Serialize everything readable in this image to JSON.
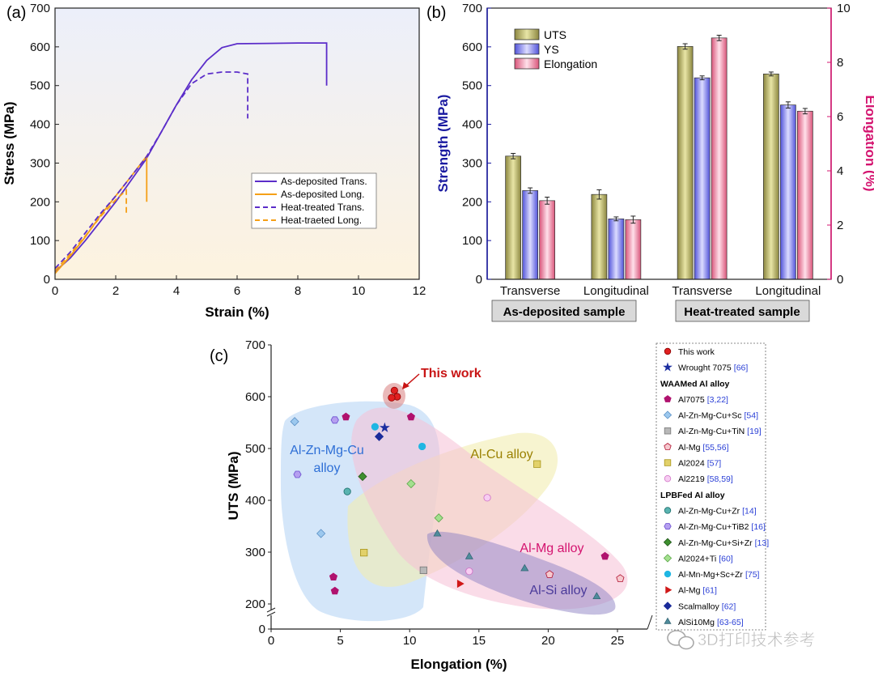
{
  "panels": {
    "a": "(a)",
    "b": "(b)",
    "c": "(c)"
  },
  "colors": {
    "purple": "#5b2dc9",
    "orange": "#f5a017",
    "navy": "#1a1aa0",
    "magenta": "#d4136f",
    "red": "#c81414"
  },
  "chart_data": [
    {
      "id": "a",
      "type": "line",
      "title": "",
      "xlabel": "Strain (%)",
      "ylabel": "Stress (MPa)",
      "xlim": [
        0,
        12
      ],
      "ylim": [
        0,
        700
      ],
      "xticks": [
        "0",
        "2",
        "4",
        "6",
        "8",
        "10",
        "12"
      ],
      "yticks": [
        "0",
        "100",
        "200",
        "300",
        "400",
        "500",
        "600",
        "700"
      ],
      "legend_position": "lower-right",
      "series": [
        {
          "name": "As-deposited Trans.",
          "color": "#5b2dc9",
          "dash": false,
          "x": [
            0,
            0.5,
            1,
            1.5,
            2,
            2.5,
            3,
            3.5,
            4,
            4.5,
            5,
            5.5,
            6,
            7,
            8,
            8.95,
            8.95
          ],
          "y": [
            20,
            55,
            100,
            150,
            200,
            255,
            310,
            380,
            450,
            515,
            565,
            598,
            608,
            609,
            610,
            610,
            500
          ]
        },
        {
          "name": "As-deposited Long.",
          "color": "#f5a017",
          "dash": false,
          "x": [
            0,
            0.5,
            1,
            1.5,
            2,
            2.5,
            3.02,
            3.02
          ],
          "y": [
            15,
            60,
            110,
            165,
            215,
            265,
            318,
            200
          ]
        },
        {
          "name": "Heat-treated Trans.",
          "color": "#5b2dc9",
          "dash": true,
          "x": [
            0,
            0.5,
            1,
            1.5,
            2,
            2.5,
            3,
            3.5,
            4,
            4.5,
            5,
            5.5,
            6,
            6.35,
            6.35
          ],
          "y": [
            28,
            70,
            120,
            170,
            215,
            265,
            315,
            380,
            450,
            505,
            530,
            535,
            535,
            530,
            415
          ]
        },
        {
          "name": "Heat-traeted Long.",
          "color": "#f5a017",
          "dash": true,
          "x": [
            0,
            0.5,
            1,
            1.5,
            2,
            2.35,
            2.35
          ],
          "y": [
            22,
            65,
            112,
            162,
            205,
            230,
            165
          ]
        }
      ]
    },
    {
      "id": "b",
      "type": "bar",
      "title": "",
      "ylabel": "Strength (MPa)",
      "y2label": "Elongation (%)",
      "ylim": [
        0,
        700
      ],
      "y2lim": [
        0,
        10
      ],
      "yticks": [
        "0",
        "100",
        "200",
        "300",
        "400",
        "500",
        "600",
        "700"
      ],
      "y2ticks": [
        "0",
        "2",
        "4",
        "6",
        "8",
        "10"
      ],
      "categories": [
        "Transverse",
        "Longitudinal",
        "Transverse",
        "Longitudinal"
      ],
      "groups": [
        "As-deposited sample",
        "Heat-treated sample"
      ],
      "legend_position": "top-left",
      "series": [
        {
          "name": "UTS",
          "axis": "left",
          "color": "#c8c470",
          "values": [
            318,
            219,
            601,
            530
          ],
          "errors": [
            7,
            12,
            7,
            5
          ]
        },
        {
          "name": "YS",
          "axis": "left",
          "color": "#8f90f2",
          "values": [
            229,
            156,
            520,
            450
          ],
          "errors": [
            7,
            5,
            5,
            8
          ]
        },
        {
          "name": "Elongation",
          "axis": "right",
          "color": "#f49ab4",
          "values": [
            2.9,
            2.2,
            8.9,
            6.2
          ],
          "errors": [
            0.13,
            0.13,
            0.1,
            0.1
          ]
        }
      ]
    },
    {
      "id": "c",
      "type": "scatter",
      "title": "",
      "xlabel": "Elongation (%)",
      "ylabel": "UTS (MPa)",
      "xlim": [
        0,
        27
      ],
      "ylim": [
        0,
        700
      ],
      "axis_break": true,
      "xticks": [
        "0",
        "5",
        "10",
        "15",
        "20",
        "25"
      ],
      "yticks": [
        "0",
        "200",
        "300",
        "400",
        "500",
        "600",
        "700"
      ],
      "annotations": {
        "this_work": "This work"
      },
      "regions": [
        {
          "name": "Al-Zn-Mg-Cu alloy",
          "line1": "Al-Zn-Mg-Cu",
          "line2": "alloy",
          "color": "#2e6fd6"
        },
        {
          "name": "Al-Cu alloy",
          "color": "#9a8000"
        },
        {
          "name": "Al-Mg alloy",
          "color": "#d4136f"
        },
        {
          "name": "Al-Si alloy",
          "color": "#4a3a9a"
        }
      ],
      "legend": {
        "items": [
          {
            "label": "This work",
            "cite": "",
            "marker": "circle-red"
          },
          {
            "label": "Wrought 7075",
            "cite": "[66]",
            "marker": "star"
          },
          {
            "label": "WAAMed Al alloy",
            "cite": "",
            "marker": "heading"
          },
          {
            "label": "Al7075",
            "cite": "[3,22]",
            "marker": "pentagon"
          },
          {
            "label": "Al-Zn-Mg-Cu+Sc",
            "cite": "[54]",
            "marker": "diamond-lb"
          },
          {
            "label": "Al-Zn-Mg-Cu+TiN",
            "cite": "[19]",
            "marker": "square-gray"
          },
          {
            "label": "Al-Mg",
            "cite": "[55,56]",
            "marker": "pentagon-half"
          },
          {
            "label": "Al2024",
            "cite": "[57]",
            "marker": "square-yellow"
          },
          {
            "label": "Al2219",
            "cite": "[58,59]",
            "marker": "circle-pink"
          },
          {
            "label": "LPBFed Al alloy",
            "cite": "",
            "marker": "heading"
          },
          {
            "label": "Al-Zn-Mg-Cu+Zr",
            "cite": "[14]",
            "marker": "circle-teal"
          },
          {
            "label": "Al-Zn-Mg-Cu+TiB2",
            "cite": "[16]",
            "marker": "hex-purple"
          },
          {
            "label": "Al-Zn-Mg-Cu+Si+Zr",
            "cite": "[13]",
            "marker": "diamond-green"
          },
          {
            "label": "Al2024+Ti",
            "cite": "[60]",
            "marker": "diamond-lgreen"
          },
          {
            "label": "Al-Mn-Mg+Sc+Zr",
            "cite": "[75]",
            "marker": "circle-cyan"
          },
          {
            "label": "Al-Mg",
            "cite": "[61]",
            "marker": "triangle-right"
          },
          {
            "label": "Scalmalloy",
            "cite": "[62]",
            "marker": "diamond-navy"
          },
          {
            "label": "AlSi10Mg",
            "cite": "[63-65]",
            "marker": "triangle-teal"
          }
        ]
      },
      "points": [
        {
          "group": "This work",
          "marker": "circle-red",
          "x": 8.9,
          "y": 612
        },
        {
          "group": "This work",
          "marker": "circle-red",
          "x": 9.1,
          "y": 600
        },
        {
          "group": "This work",
          "marker": "circle-red",
          "x": 8.7,
          "y": 598
        },
        {
          "group": "Wrought 7075",
          "marker": "star",
          "x": 8.2,
          "y": 540
        },
        {
          "group": "Al7075",
          "marker": "pentagon",
          "x": 5.4,
          "y": 561
        },
        {
          "group": "Al7075",
          "marker": "pentagon",
          "x": 10.1,
          "y": 561
        },
        {
          "group": "Al7075",
          "marker": "pentagon",
          "x": 4.5,
          "y": 252
        },
        {
          "group": "Al7075",
          "marker": "pentagon",
          "x": 4.6,
          "y": 225
        },
        {
          "group": "Al7075",
          "marker": "pentagon",
          "x": 24.1,
          "y": 292
        },
        {
          "group": "Al-Zn-Mg-Cu+Sc",
          "marker": "diamond-lb",
          "x": 1.7,
          "y": 552
        },
        {
          "group": "Al-Zn-Mg-Cu+Sc",
          "marker": "diamond-lb",
          "x": 3.6,
          "y": 336
        },
        {
          "group": "Al-Zn-Mg-Cu+TiN",
          "marker": "square-gray",
          "x": 11.0,
          "y": 265
        },
        {
          "group": "Al-Mg",
          "marker": "pentagon-half",
          "x": 20.1,
          "y": 257
        },
        {
          "group": "Al-Mg",
          "marker": "pentagon-half",
          "x": 25.2,
          "y": 249
        },
        {
          "group": "Al2024",
          "marker": "square-yellow",
          "x": 19.2,
          "y": 470
        },
        {
          "group": "Al2024",
          "marker": "square-yellow",
          "x": 6.7,
          "y": 299
        },
        {
          "group": "Al2219",
          "marker": "circle-pink",
          "x": 15.6,
          "y": 405
        },
        {
          "group": "Al2219",
          "marker": "circle-pink",
          "x": 14.3,
          "y": 263
        },
        {
          "group": "Al-Zn-Mg-Cu+Zr",
          "marker": "circle-teal",
          "x": 5.5,
          "y": 417
        },
        {
          "group": "Al-Zn-Mg-Cu+TiB2",
          "marker": "hex-purple",
          "x": 4.6,
          "y": 555
        },
        {
          "group": "Al-Zn-Mg-Cu+TiB2",
          "marker": "hex-purple",
          "x": 1.9,
          "y": 450
        },
        {
          "group": "Al-Zn-Mg-Cu+Si+Zr",
          "marker": "diamond-green",
          "x": 6.6,
          "y": 446
        },
        {
          "group": "Al2024+Ti",
          "marker": "diamond-lgreen",
          "x": 10.1,
          "y": 432
        },
        {
          "group": "Al2024+Ti",
          "marker": "diamond-lgreen",
          "x": 12.1,
          "y": 366
        },
        {
          "group": "Al-Mn-Mg+Sc+Zr",
          "marker": "circle-cyan",
          "x": 7.5,
          "y": 542
        },
        {
          "group": "Al-Mn-Mg+Sc+Zr",
          "marker": "circle-cyan",
          "x": 10.9,
          "y": 504
        },
        {
          "group": "Al-Mg",
          "marker": "triangle-right",
          "x": 13.6,
          "y": 239
        },
        {
          "group": "Scalmalloy",
          "marker": "diamond-navy",
          "x": 7.8,
          "y": 523
        },
        {
          "group": "AlSi10Mg",
          "marker": "triangle-teal",
          "x": 12.0,
          "y": 335
        },
        {
          "group": "AlSi10Mg",
          "marker": "triangle-teal",
          "x": 14.3,
          "y": 291
        },
        {
          "group": "AlSi10Mg",
          "marker": "triangle-teal",
          "x": 18.3,
          "y": 268
        },
        {
          "group": "AlSi10Mg",
          "marker": "triangle-teal",
          "x": 23.5,
          "y": 214
        }
      ]
    }
  ],
  "watermark": "3D打印技术参考"
}
